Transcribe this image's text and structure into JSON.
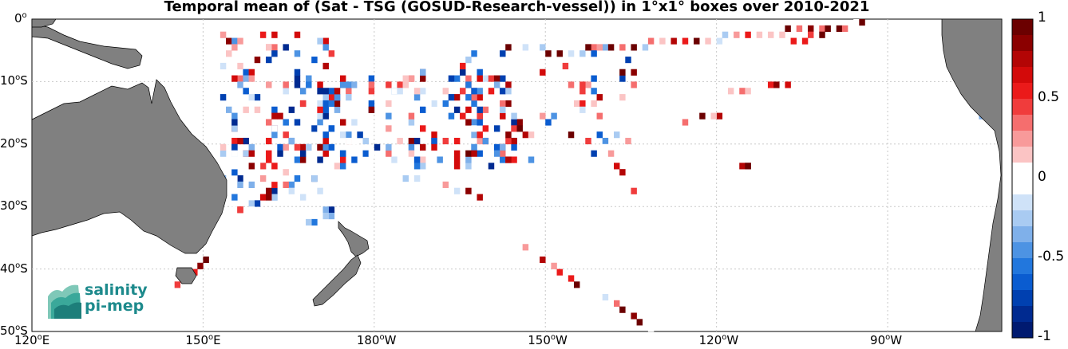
{
  "title": "Temporal mean of (Sat - TSG (GOSUD-Research-vessel)) in 1°x1° boxes over 2010-2021",
  "lat_labels": [
    "0o",
    "10oS",
    "20oS",
    "30oS",
    "40oS",
    "50oS"
  ],
  "lat_labels_display": [
    {
      "deg": "0",
      "sup": "o",
      "hemi": ""
    },
    {
      "deg": "10",
      "sup": "o",
      "hemi": "S"
    },
    {
      "deg": "20",
      "sup": "o",
      "hemi": "S"
    },
    {
      "deg": "30",
      "sup": "o",
      "hemi": "S"
    },
    {
      "deg": "40",
      "sup": "o",
      "hemi": "S"
    },
    {
      "deg": "50",
      "sup": "o",
      "hemi": "S"
    }
  ],
  "lon_labels_display": [
    {
      "deg": "120",
      "sup": "o",
      "hemi": "E"
    },
    {
      "deg": "150",
      "sup": "o",
      "hemi": "E"
    },
    {
      "deg": "180",
      "sup": "o",
      "hemi": "W"
    },
    {
      "deg": "150",
      "sup": "o",
      "hemi": "W"
    },
    {
      "deg": "120",
      "sup": "o",
      "hemi": "W"
    },
    {
      "deg": "90",
      "sup": "o",
      "hemi": "W"
    }
  ],
  "colorbar": {
    "ticks": [
      "1",
      "0.5",
      "0",
      "-0.5",
      "-1"
    ],
    "min": -1,
    "max": 1
  },
  "logo": {
    "line1": "salinity",
    "line2": "pi-mep"
  },
  "colors": {
    "land": "#808080",
    "pos": [
      "#ffffff",
      "#fbc4c4",
      "#f89a9a",
      "#f56e6e",
      "#f03c3c",
      "#eb1a1a",
      "#d30a0a",
      "#b30505",
      "#8b0000",
      "#6b0000"
    ],
    "neg": [
      "#ffffff",
      "#cfe2f8",
      "#a9cbf2",
      "#7fb0ea",
      "#4d93e3",
      "#2277dd",
      "#0a5cd0",
      "#0040b0",
      "#002a90",
      "#001a70"
    ]
  }
}
